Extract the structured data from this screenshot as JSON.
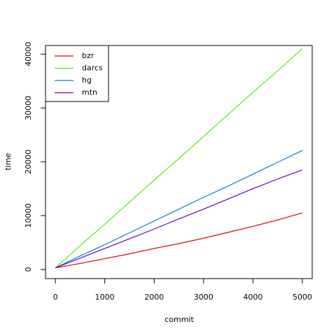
{
  "chart_data": {
    "type": "line",
    "x_label": "commit",
    "y_label": "time",
    "x": [
      0,
      500,
      1000,
      1500,
      2000,
      2500,
      3000,
      3500,
      4000,
      4500,
      5000
    ],
    "series": [
      {
        "name": "bzr",
        "color": "#dd0000",
        "values": [
          300,
          1100,
          2000,
          2900,
          3900,
          4800,
          5800,
          6900,
          8000,
          9200,
          10500
        ]
      },
      {
        "name": "darcs",
        "color": "#55ee00",
        "values": [
          300,
          4400,
          8400,
          12500,
          16600,
          20600,
          24700,
          28800,
          32900,
          36900,
          41000
        ]
      },
      {
        "name": "hg",
        "color": "#0080dd",
        "values": [
          300,
          2500,
          4600,
          6800,
          9000,
          11200,
          13400,
          15500,
          17700,
          19900,
          22100
        ]
      },
      {
        "name": "mtn",
        "color": "#6600cc",
        "values": [
          300,
          2100,
          3900,
          5700,
          7500,
          9400,
          11200,
          13100,
          15000,
          16800,
          18500
        ]
      }
    ],
    "xlim": [
      -200,
      5200
    ],
    "ylim": [
      -1700,
      41600
    ],
    "xticks": [
      0,
      1000,
      2000,
      3000,
      4000,
      5000
    ],
    "yticks": [
      0,
      10000,
      20000,
      30000,
      40000
    ],
    "legend": "top-left"
  }
}
